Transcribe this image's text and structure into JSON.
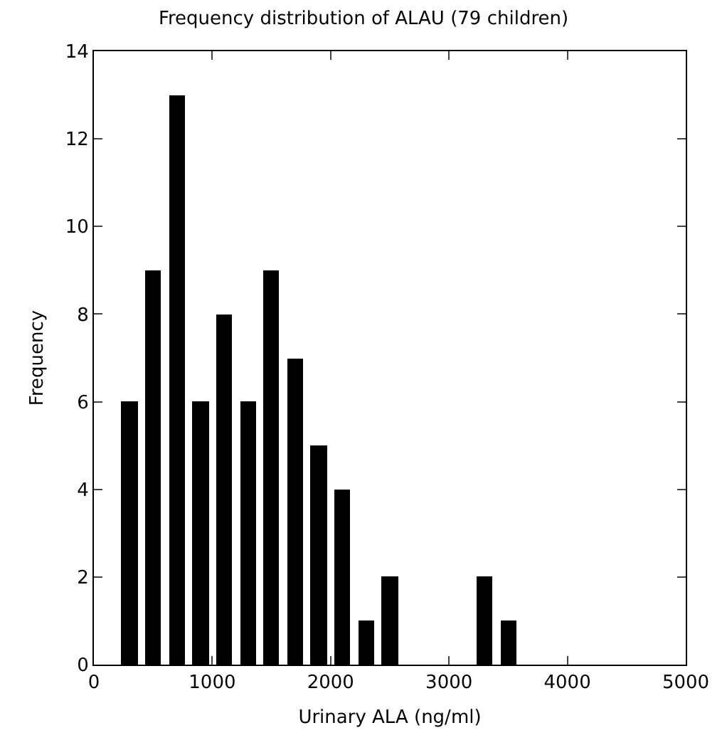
{
  "chart_data": {
    "type": "histogram",
    "title": "Frequency distribution of ALAU (79 children)",
    "xlabel": "Urinary ALA (ng/ml)",
    "ylabel": "Frequency",
    "bins": [
      200,
      400,
      600,
      800,
      1000,
      1200,
      1400,
      1600,
      1800,
      2000,
      2200,
      2400,
      2600,
      2800,
      3000,
      3200,
      3400,
      3600
    ],
    "values": [
      6,
      9,
      13,
      6,
      8,
      6,
      9,
      7,
      5,
      4,
      1,
      2,
      0,
      0,
      0,
      2,
      1
    ],
    "color": "#000000",
    "xlim": [
      0,
      5000
    ],
    "xticks": [
      0,
      1000,
      2000,
      3000,
      4000,
      5000
    ],
    "ylim": [
      0,
      14
    ],
    "yticks": [
      0,
      2,
      4,
      6,
      8,
      10,
      12,
      14
    ],
    "grid": false
  }
}
